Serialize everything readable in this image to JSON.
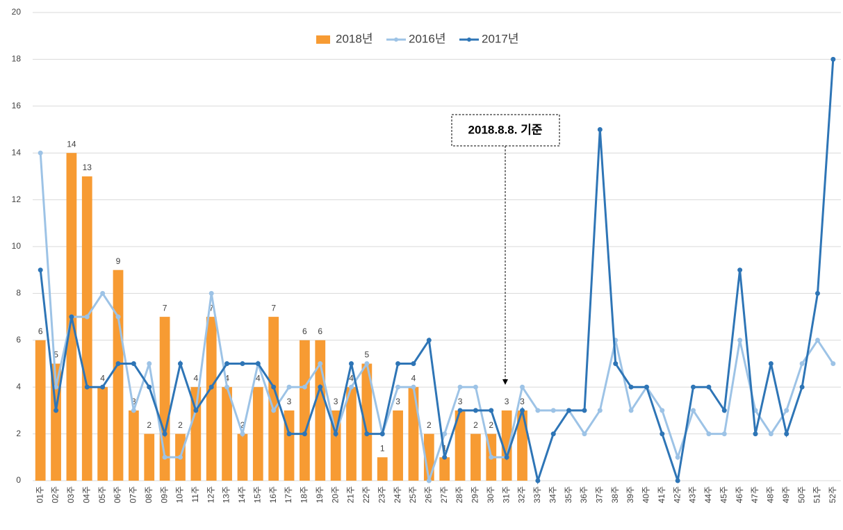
{
  "chart_data": {
    "type": "bar",
    "categories": [
      "01주",
      "02주",
      "03주",
      "04주",
      "05주",
      "06주",
      "07주",
      "08주",
      "09주",
      "10주",
      "11주",
      "12주",
      "13주",
      "14주",
      "15주",
      "16주",
      "17주",
      "18주",
      "19주",
      "20주",
      "21주",
      "22주",
      "23주",
      "24주",
      "25주",
      "26주",
      "27주",
      "28주",
      "29주",
      "30주",
      "31주",
      "32주",
      "33주",
      "34주",
      "35주",
      "36주",
      "37주",
      "38주",
      "39주",
      "40주",
      "41주",
      "42주",
      "43주",
      "44주",
      "45주",
      "46주",
      "47주",
      "48주",
      "49주",
      "50주",
      "51주",
      "52주"
    ],
    "series": [
      {
        "name": "2018년",
        "type": "bar",
        "color": "#f79b33",
        "values": [
          6,
          5,
          14,
          13,
          4,
          9,
          3,
          2,
          7,
          2,
          4,
          7,
          4,
          2,
          4,
          7,
          3,
          6,
          6,
          3,
          4,
          5,
          1,
          3,
          4,
          2,
          1,
          3,
          2,
          2,
          3,
          3,
          null,
          null,
          null,
          null,
          null,
          null,
          null,
          null,
          null,
          null,
          null,
          null,
          null,
          null,
          null,
          null,
          null,
          null,
          null,
          null
        ]
      },
      {
        "name": "2016년",
        "type": "line",
        "color": "#9dc3e6",
        "values": [
          14,
          4,
          7,
          7,
          8,
          7,
          3,
          5,
          1,
          1,
          3,
          8,
          4,
          2,
          5,
          3,
          4,
          4,
          5,
          2,
          4,
          5,
          2,
          4,
          4,
          0,
          2,
          4,
          4,
          1,
          1,
          4,
          3,
          3,
          3,
          2,
          3,
          6,
          3,
          4,
          3,
          1,
          3,
          2,
          2,
          6,
          3,
          2,
          3,
          5,
          6,
          5
        ]
      },
      {
        "name": "2017년",
        "type": "line",
        "color": "#2e75b6",
        "values": [
          9,
          3,
          7,
          4,
          4,
          5,
          5,
          4,
          2,
          5,
          3,
          4,
          5,
          5,
          5,
          4,
          2,
          2,
          4,
          2,
          5,
          2,
          2,
          5,
          5,
          6,
          1,
          3,
          3,
          3,
          1,
          3,
          0,
          2,
          3,
          3,
          15,
          5,
          4,
          4,
          2,
          0,
          4,
          4,
          3,
          9,
          2,
          5,
          2,
          4,
          8,
          18
        ]
      }
    ],
    "ylim": [
      0,
      20
    ],
    "yticks": [
      0,
      2,
      4,
      6,
      8,
      10,
      12,
      14,
      16,
      18,
      20
    ],
    "grid": true,
    "annotation": "2018.8.8. 기준"
  }
}
